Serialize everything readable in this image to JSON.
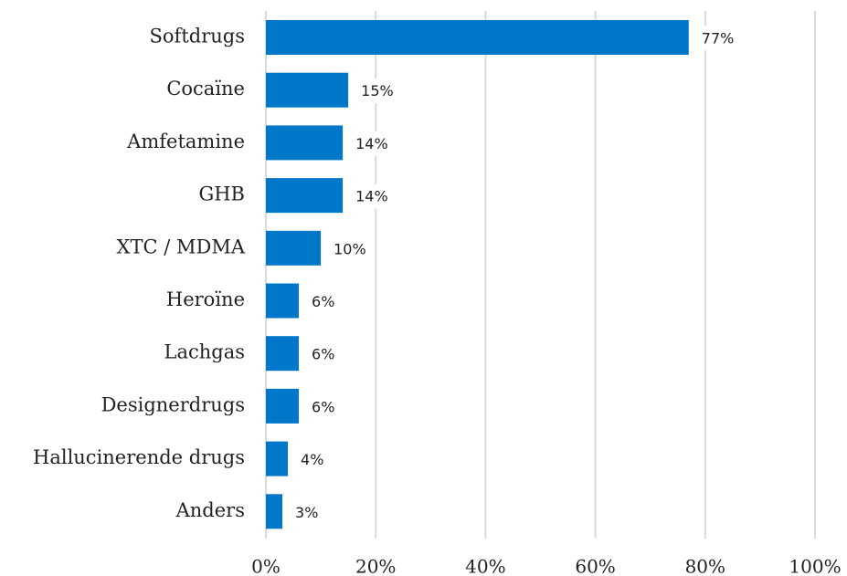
{
  "chart_data": {
    "type": "bar",
    "orientation": "horizontal",
    "categories": [
      "Softdrugs",
      "Cocaïne",
      "Amfetamine",
      "GHB",
      "XTC / MDMA",
      "Heroïne",
      "Lachgas",
      "Designerdrugs",
      "Hallucinerende drugs",
      "Anders"
    ],
    "values": [
      77,
      15,
      14,
      14,
      10,
      6,
      6,
      6,
      4,
      3
    ],
    "value_labels": [
      "77%",
      "15%",
      "14%",
      "14%",
      "10%",
      "6%",
      "6%",
      "6%",
      "4%",
      "3%"
    ],
    "color": "#0077c8",
    "xlim": [
      0,
      100
    ],
    "xticks": [
      {
        "value": 0,
        "label": "0%"
      },
      {
        "value": 20,
        "label": "20%"
      },
      {
        "value": 40,
        "label": "40%"
      },
      {
        "value": 60,
        "label": "60%"
      },
      {
        "value": 80,
        "label": "80%"
      },
      {
        "value": 100,
        "label": "100%"
      }
    ],
    "grid": true
  }
}
